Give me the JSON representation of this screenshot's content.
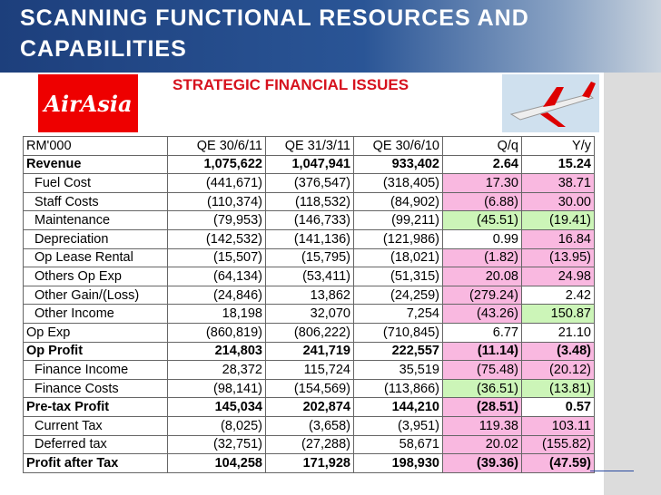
{
  "header": {
    "title_lines": [
      "SCANNING FUNCTIONAL RESOURCES AND",
      "CAPABILITIES"
    ],
    "logo": "AirAsia",
    "subtitle": "STRATEGIC FINANCIAL ISSUES"
  },
  "table": {
    "columns": [
      "RM'000",
      "QE 30/6/11",
      "QE 31/3/11",
      "QE 30/6/10",
      "Q/q",
      "Y/y"
    ],
    "highlight_colors": {
      "pink": "#f9b8e0",
      "green": "#ccf5b8"
    },
    "rows": [
      {
        "style": "bold",
        "cells": [
          "Revenue",
          "1,075,622",
          "1,047,941",
          "933,402",
          "2.64",
          "15.24"
        ],
        "highlights": [
          null,
          null
        ]
      },
      {
        "style": "indent",
        "cells": [
          "Fuel Cost",
          "(441,671)",
          "(376,547)",
          "(318,405)",
          "17.30",
          "38.71"
        ],
        "highlights": [
          "pink",
          "pink"
        ]
      },
      {
        "style": "indent",
        "cells": [
          "Staff Costs",
          "(110,374)",
          "(118,532)",
          "(84,902)",
          "(6.88)",
          "30.00"
        ],
        "highlights": [
          "pink",
          "pink"
        ]
      },
      {
        "style": "indent",
        "cells": [
          "Maintenance",
          "(79,953)",
          "(146,733)",
          "(99,211)",
          "(45.51)",
          "(19.41)"
        ],
        "highlights": [
          "green",
          "green"
        ]
      },
      {
        "style": "indent",
        "cells": [
          "Depreciation",
          "(142,532)",
          "(141,136)",
          "(121,986)",
          "0.99",
          "16.84"
        ],
        "highlights": [
          null,
          "pink"
        ]
      },
      {
        "style": "indent",
        "cells": [
          "Op Lease Rental",
          "(15,507)",
          "(15,795)",
          "(18,021)",
          "(1.82)",
          "(13.95)"
        ],
        "highlights": [
          "pink",
          "pink"
        ]
      },
      {
        "style": "indent",
        "cells": [
          "Others Op Exp",
          "(64,134)",
          "(53,411)",
          "(51,315)",
          "20.08",
          "24.98"
        ],
        "highlights": [
          "pink",
          "pink"
        ]
      },
      {
        "style": "indent",
        "cells": [
          "Other Gain/(Loss)",
          "(24,846)",
          "13,862",
          "(24,259)",
          "(279.24)",
          "2.42"
        ],
        "highlights": [
          "pink",
          null
        ]
      },
      {
        "style": "indent",
        "cells": [
          "Other Income",
          "18,198",
          "32,070",
          "7,254",
          "(43.26)",
          "150.87"
        ],
        "highlights": [
          "pink",
          "green"
        ]
      },
      {
        "style": "plain",
        "cells": [
          "Op Exp",
          "(860,819)",
          "(806,222)",
          "(710,845)",
          "6.77",
          "21.10"
        ],
        "highlights": [
          null,
          null
        ]
      },
      {
        "style": "bold",
        "cells": [
          "Op Profit",
          "214,803",
          "241,719",
          "222,557",
          "(11.14)",
          "(3.48)"
        ],
        "highlights": [
          "pink",
          "pink"
        ]
      },
      {
        "style": "indent",
        "cells": [
          "Finance Income",
          "28,372",
          "115,724",
          "35,519",
          "(75.48)",
          "(20.12)"
        ],
        "highlights": [
          "pink",
          "pink"
        ]
      },
      {
        "style": "indent",
        "cells": [
          "Finance Costs",
          "(98,141)",
          "(154,569)",
          "(113,866)",
          "(36.51)",
          "(13.81)"
        ],
        "highlights": [
          "green",
          "green"
        ]
      },
      {
        "style": "bold",
        "cells": [
          "Pre-tax Profit",
          "145,034",
          "202,874",
          "144,210",
          "(28.51)",
          "0.57"
        ],
        "highlights": [
          "pink",
          null
        ]
      },
      {
        "style": "indent",
        "cells": [
          "Current Tax",
          "(8,025)",
          "(3,658)",
          "(3,951)",
          "119.38",
          "103.11"
        ],
        "highlights": [
          "pink",
          "pink"
        ]
      },
      {
        "style": "indent",
        "cells": [
          "Deferred tax",
          "(32,751)",
          "(27,288)",
          "58,671",
          "20.02",
          "(155.82)"
        ],
        "highlights": [
          "pink",
          "pink"
        ]
      },
      {
        "style": "bold",
        "cells": [
          "Profit after Tax",
          "104,258",
          "171,928",
          "198,930",
          "(39.36)",
          "(47.59)"
        ],
        "highlights": [
          "pink",
          "pink"
        ]
      }
    ]
  }
}
